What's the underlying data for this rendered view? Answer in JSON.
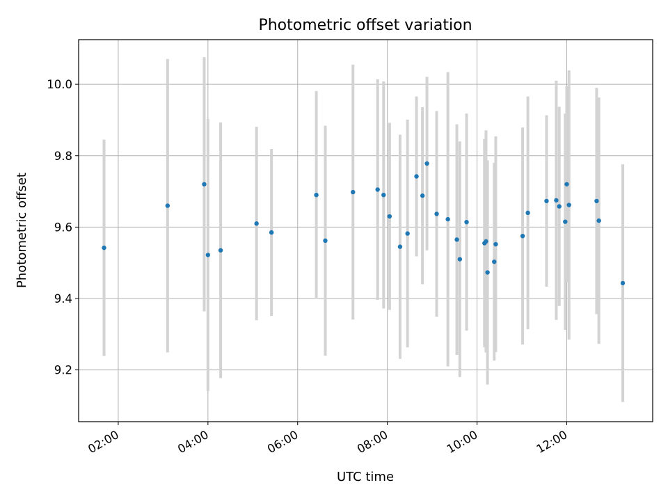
{
  "chart_data": {
    "type": "scatter",
    "title": "Photometric offset variation",
    "xlabel": "UTC time",
    "ylabel": "Photometric offset",
    "x_axis_type": "time",
    "xlim": [
      "01:07",
      "13:55"
    ],
    "ylim": [
      9.055,
      10.125
    ],
    "x_ticks": [
      "02:00",
      "04:00",
      "06:00",
      "08:00",
      "10:00",
      "12:00"
    ],
    "y_ticks": [
      9.2,
      9.4,
      9.6,
      9.8,
      10.0
    ],
    "y_tick_labels": [
      "9.2",
      "9.4",
      "9.6",
      "9.8",
      "10.0"
    ],
    "grid": true,
    "legend": "none",
    "colors": {
      "points": "#1f77b4",
      "errorbars": "#d3d3d3",
      "grid": "#b0b0b0"
    },
    "points": [
      {
        "x": "01:41",
        "y": 9.542,
        "err": 0.303
      },
      {
        "x": "03:06",
        "y": 9.66,
        "err": 0.411
      },
      {
        "x": "03:55",
        "y": 9.72,
        "err": 0.356
      },
      {
        "x": "04:00",
        "y": 9.522,
        "err": 0.381
      },
      {
        "x": "04:17",
        "y": 9.535,
        "err": 0.358
      },
      {
        "x": "05:05",
        "y": 9.61,
        "err": 0.271
      },
      {
        "x": "05:25",
        "y": 9.585,
        "err": 0.234
      },
      {
        "x": "06:25",
        "y": 9.69,
        "err": 0.291
      },
      {
        "x": "06:37",
        "y": 9.562,
        "err": 0.322
      },
      {
        "x": "07:14",
        "y": 9.698,
        "err": 0.357
      },
      {
        "x": "07:47",
        "y": 9.705,
        "err": 0.309
      },
      {
        "x": "07:55",
        "y": 9.69,
        "err": 0.318
      },
      {
        "x": "08:03",
        "y": 9.63,
        "err": 0.262
      },
      {
        "x": "08:17",
        "y": 9.545,
        "err": 0.314
      },
      {
        "x": "08:27",
        "y": 9.582,
        "err": 0.319
      },
      {
        "x": "08:39",
        "y": 9.742,
        "err": 0.224
      },
      {
        "x": "08:47",
        "y": 9.688,
        "err": 0.248
      },
      {
        "x": "08:53",
        "y": 9.778,
        "err": 0.243
      },
      {
        "x": "09:06",
        "y": 9.637,
        "err": 0.288
      },
      {
        "x": "09:21",
        "y": 9.622,
        "err": 0.412
      },
      {
        "x": "09:33",
        "y": 9.565,
        "err": 0.323
      },
      {
        "x": "09:37",
        "y": 9.51,
        "err": 0.33
      },
      {
        "x": "09:46",
        "y": 9.614,
        "err": 0.304
      },
      {
        "x": "10:10",
        "y": 9.555,
        "err": 0.292
      },
      {
        "x": "10:12",
        "y": 9.56,
        "err": 0.311
      },
      {
        "x": "10:14",
        "y": 9.473,
        "err": 0.314
      },
      {
        "x": "10:23",
        "y": 9.503,
        "err": 0.277
      },
      {
        "x": "10:25",
        "y": 9.552,
        "err": 0.302
      },
      {
        "x": "11:01",
        "y": 9.575,
        "err": 0.304
      },
      {
        "x": "11:08",
        "y": 9.64,
        "err": 0.326
      },
      {
        "x": "11:33",
        "y": 9.673,
        "err": 0.24
      },
      {
        "x": "11:46",
        "y": 9.675,
        "err": 0.335
      },
      {
        "x": "11:50",
        "y": 9.658,
        "err": 0.279
      },
      {
        "x": "11:58",
        "y": 9.615,
        "err": 0.303
      },
      {
        "x": "12:00",
        "y": 9.72,
        "err": 0.275
      },
      {
        "x": "12:03",
        "y": 9.662,
        "err": 0.377
      },
      {
        "x": "12:40",
        "y": 9.673,
        "err": 0.317
      },
      {
        "x": "12:43",
        "y": 9.618,
        "err": 0.345
      },
      {
        "x": "13:15",
        "y": 9.443,
        "err": 0.333
      }
    ]
  }
}
